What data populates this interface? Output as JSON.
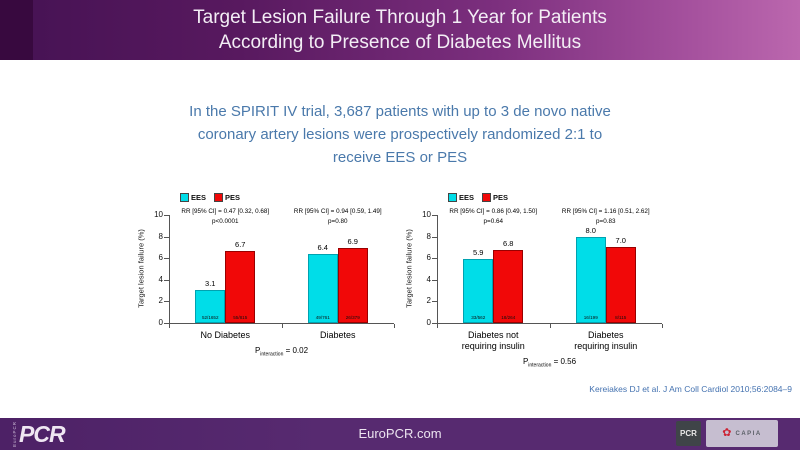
{
  "header": {
    "title_lines": [
      "Target Lesion Failure Through 1 Year for Patients",
      "According to Presence of Diabetes Mellitus"
    ]
  },
  "intro": {
    "lines": [
      "In the SPIRIT IV trial, 3,687 patients with up to 3 de novo native",
      "coronary artery lesions were prospectively randomized 2:1 to",
      "receive EES or PES"
    ]
  },
  "citation": "Kereiakes DJ et al. J Am Coll Cardiol 2010;56:2084–9",
  "footer": {
    "website": "EuroPCR.com",
    "europcr_logo_text": "PCR",
    "europcr_logo_vertical_text": "EuroPCR",
    "pcr_badge_text": "PCR",
    "partner_badge_text": "CAPIA",
    "partner_badge_icon": "flower-seal-icon"
  },
  "colors": {
    "ees": "#00dde8",
    "ees_border": "#00a2b0",
    "pes": "#f10808",
    "pes_border": "#990000",
    "header_purple_dark": "#451253",
    "header_purple_light": "#bb67ae",
    "footer_purple": "#572a70",
    "intro_blue": "#4a79ab",
    "citation_blue": "#4472b0"
  },
  "chart_data": [
    {
      "type": "bar",
      "title": "",
      "ylabel": "Target lesion failure (%)",
      "xlabel": "",
      "ylim": [
        0,
        10
      ],
      "yticks": [
        0,
        2,
        4,
        6,
        8,
        10
      ],
      "grid": false,
      "legend_position": "top-left",
      "categories": [
        "No Diabetes",
        "Diabetes"
      ],
      "annotations": [
        {
          "rr": "RR [95% CI] = 0.47 [0.32, 0.68]",
          "p": "p<0.0001"
        },
        {
          "rr": "RR [95% CI] = 0.94 [0.59, 1.49]",
          "p": "p=0.80"
        }
      ],
      "series": [
        {
          "name": "EES",
          "values": [
            3.1,
            6.4
          ],
          "fractions": [
            "52/1652",
            "49/761"
          ]
        },
        {
          "name": "PES",
          "values": [
            6.7,
            6.9
          ],
          "fractions": [
            "55/815",
            "26/379"
          ]
        }
      ],
      "p_label": "P",
      "p_sub": "interaction",
      "p_value": "= 0.02"
    },
    {
      "type": "bar",
      "title": "",
      "ylabel": "Target lesion failure (%)",
      "xlabel": "",
      "ylim": [
        0,
        10
      ],
      "yticks": [
        0,
        2,
        4,
        6,
        8,
        10
      ],
      "grid": false,
      "legend_position": "top-left",
      "categories": [
        "Diabetes not\nrequiring insulin",
        "Diabetes\nrequiring insulin"
      ],
      "annotations": [
        {
          "rr": "RR [95% CI] = 0.86 [0.49, 1.50]",
          "p": "p=0.64"
        },
        {
          "rr": "RR [95% CI] = 1.16 [0.51, 2.62]",
          "p": "p=0.83"
        }
      ],
      "series": [
        {
          "name": "EES",
          "values": [
            5.9,
            8.0
          ],
          "fractions": [
            "33/562",
            "16/199"
          ]
        },
        {
          "name": "PES",
          "values": [
            6.8,
            7.0
          ],
          "fractions": [
            "18/264",
            "8/115"
          ]
        }
      ],
      "p_label": "P",
      "p_sub": "interaction",
      "p_value": "= 0.56"
    }
  ]
}
